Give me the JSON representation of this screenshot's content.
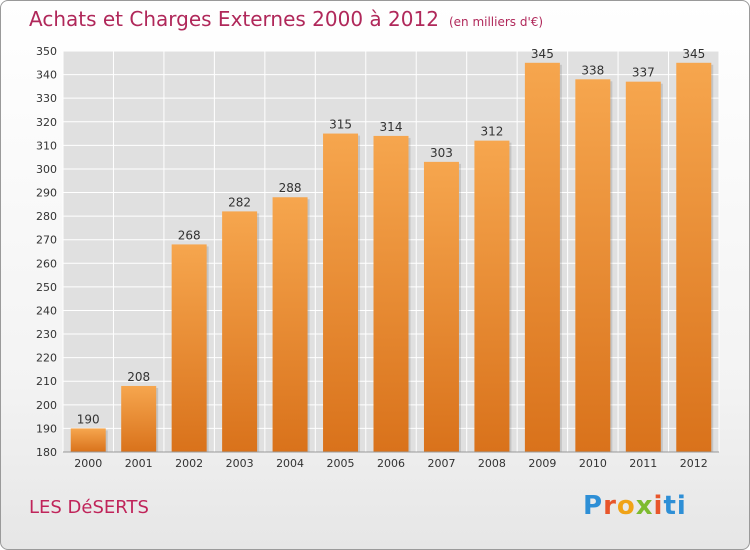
{
  "header": {
    "title": "Achats et Charges Externes 2000 à 2012",
    "unit": "(en milliers d'€)"
  },
  "footer": {
    "place": "LES DéSERTS",
    "brand_letters": [
      "P",
      "r",
      "o",
      "x",
      "i",
      "ti"
    ]
  },
  "colors": {
    "bar_top": "#f6a64e",
    "bar_bottom": "#d9721b",
    "title": "#b0285a",
    "grid": "#ffffff"
  },
  "chart_data": {
    "type": "bar",
    "title": "Achats et Charges Externes 2000 à 2012",
    "subtitle": "(en milliers d'€)",
    "xlabel": "",
    "ylabel": "",
    "categories": [
      "2000",
      "2001",
      "2002",
      "2003",
      "2004",
      "2005",
      "2006",
      "2007",
      "2008",
      "2009",
      "2010",
      "2011",
      "2012"
    ],
    "values": [
      190,
      208,
      268,
      282,
      288,
      315,
      314,
      303,
      312,
      345,
      338,
      337,
      345
    ],
    "ylim": [
      180,
      350
    ],
    "yticks": [
      180,
      190,
      200,
      210,
      220,
      230,
      240,
      250,
      260,
      270,
      280,
      290,
      300,
      310,
      320,
      330,
      340,
      350
    ],
    "grid": true,
    "legend": "none"
  }
}
